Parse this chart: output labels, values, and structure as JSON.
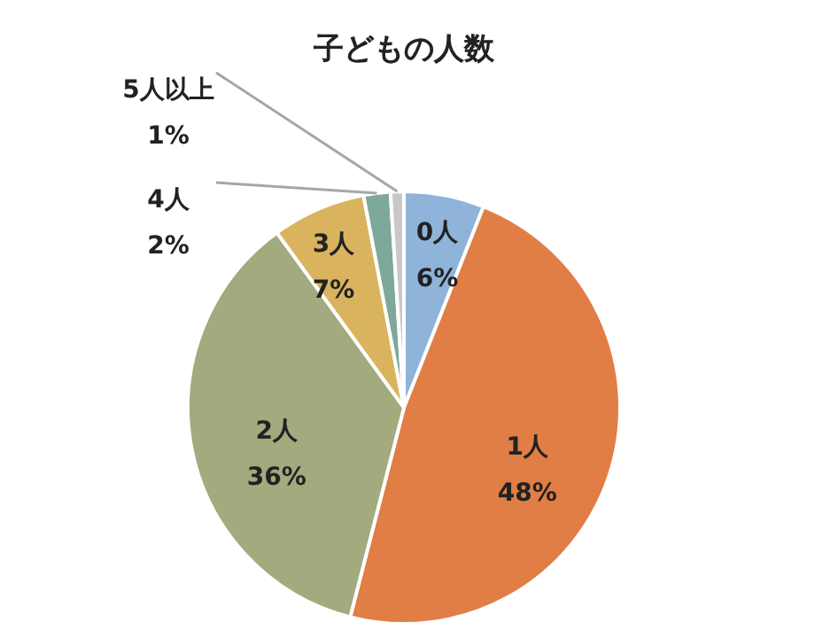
{
  "chart_data": {
    "type": "pie",
    "title": "子どもの人数",
    "categories": [
      "0人",
      "1人",
      "2人",
      "3人",
      "4人",
      "5人以上"
    ],
    "values": [
      6,
      48,
      36,
      7,
      2,
      1
    ],
    "value_labels": [
      "6%",
      "48%",
      "36%",
      "7%",
      "2%",
      "1%"
    ],
    "colors": [
      "#8fb3d9",
      "#e07e46",
      "#a3aa7e",
      "#dab35e",
      "#7ea899",
      "#c8c8c8"
    ]
  }
}
